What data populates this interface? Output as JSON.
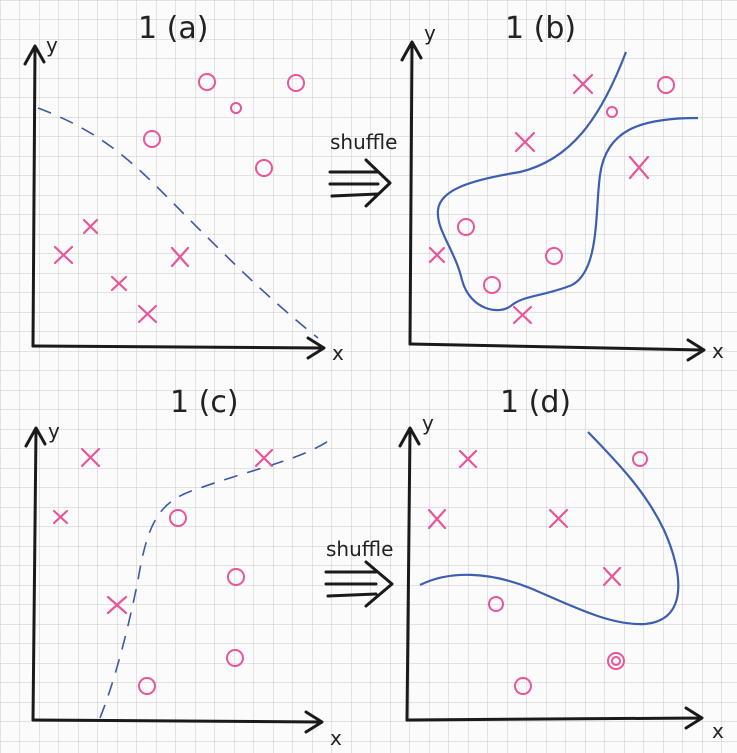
{
  "colors": {
    "grid": "#c9c9c9",
    "axis": "#1a1a1a",
    "point": "#e8559a",
    "boundary": "#3d5fb0",
    "boundary_dashed": "#3a5aa8"
  },
  "panels": [
    {
      "id": "a",
      "title": "1 (a)",
      "xlabel": "x",
      "ylabel": "y",
      "points": [
        {
          "type": "o"
        },
        {
          "type": "o"
        },
        {
          "type": "o"
        },
        {
          "type": "o"
        },
        {
          "type": "o"
        },
        {
          "type": "x"
        },
        {
          "type": "x"
        },
        {
          "type": "x"
        },
        {
          "type": "x"
        },
        {
          "type": "x"
        }
      ],
      "boundary_style": "dashed"
    },
    {
      "id": "b",
      "title": "1 (b)",
      "xlabel": "x",
      "ylabel": "y",
      "points": [
        {
          "type": "o"
        },
        {
          "type": "o"
        },
        {
          "type": "o"
        },
        {
          "type": "o"
        },
        {
          "type": "o"
        },
        {
          "type": "x"
        },
        {
          "type": "x"
        },
        {
          "type": "x"
        },
        {
          "type": "x"
        },
        {
          "type": "x"
        }
      ],
      "boundary_style": "solid"
    },
    {
      "id": "c",
      "title": "1 (c)",
      "xlabel": "x",
      "ylabel": "y",
      "points": [
        {
          "type": "o"
        },
        {
          "type": "o"
        },
        {
          "type": "o"
        },
        {
          "type": "o"
        },
        {
          "type": "x"
        },
        {
          "type": "x"
        },
        {
          "type": "x"
        },
        {
          "type": "x"
        }
      ],
      "boundary_style": "dashed"
    },
    {
      "id": "d",
      "title": "1 (d)",
      "xlabel": "x",
      "ylabel": "y",
      "points": [
        {
          "type": "o"
        },
        {
          "type": "o"
        },
        {
          "type": "o"
        },
        {
          "type": "o"
        },
        {
          "type": "o"
        },
        {
          "type": "x"
        },
        {
          "type": "x"
        },
        {
          "type": "x"
        },
        {
          "type": "x"
        }
      ],
      "boundary_style": "solid"
    }
  ],
  "arrows": [
    {
      "label": "shuffle"
    },
    {
      "label": "shuffle"
    }
  ]
}
